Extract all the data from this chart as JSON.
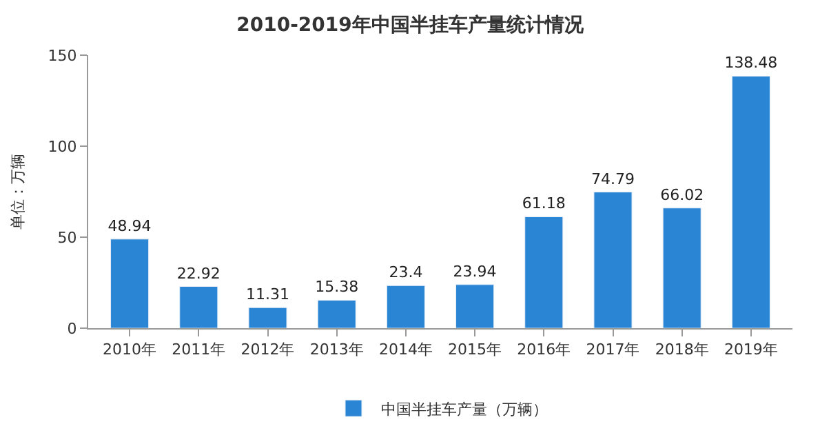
{
  "chart_data": {
    "type": "bar",
    "title": "2010-2019年中国半挂车产量统计情况",
    "ylabel": "单位：万辆",
    "categories": [
      "2010年",
      "2011年",
      "2012年",
      "2013年",
      "2014年",
      "2015年",
      "2016年",
      "2017年",
      "2018年",
      "2019年"
    ],
    "series": [
      {
        "name": "中国半挂车产量（万辆）",
        "color": "#2a86d4",
        "values": [
          48.94,
          22.92,
          11.31,
          15.38,
          23.4,
          23.94,
          61.18,
          74.79,
          66.02,
          138.48
        ]
      }
    ],
    "ylim": [
      0,
      150
    ],
    "yticks": [
      0,
      50,
      100,
      150
    ],
    "data_labels": true,
    "legend": "bottom"
  }
}
